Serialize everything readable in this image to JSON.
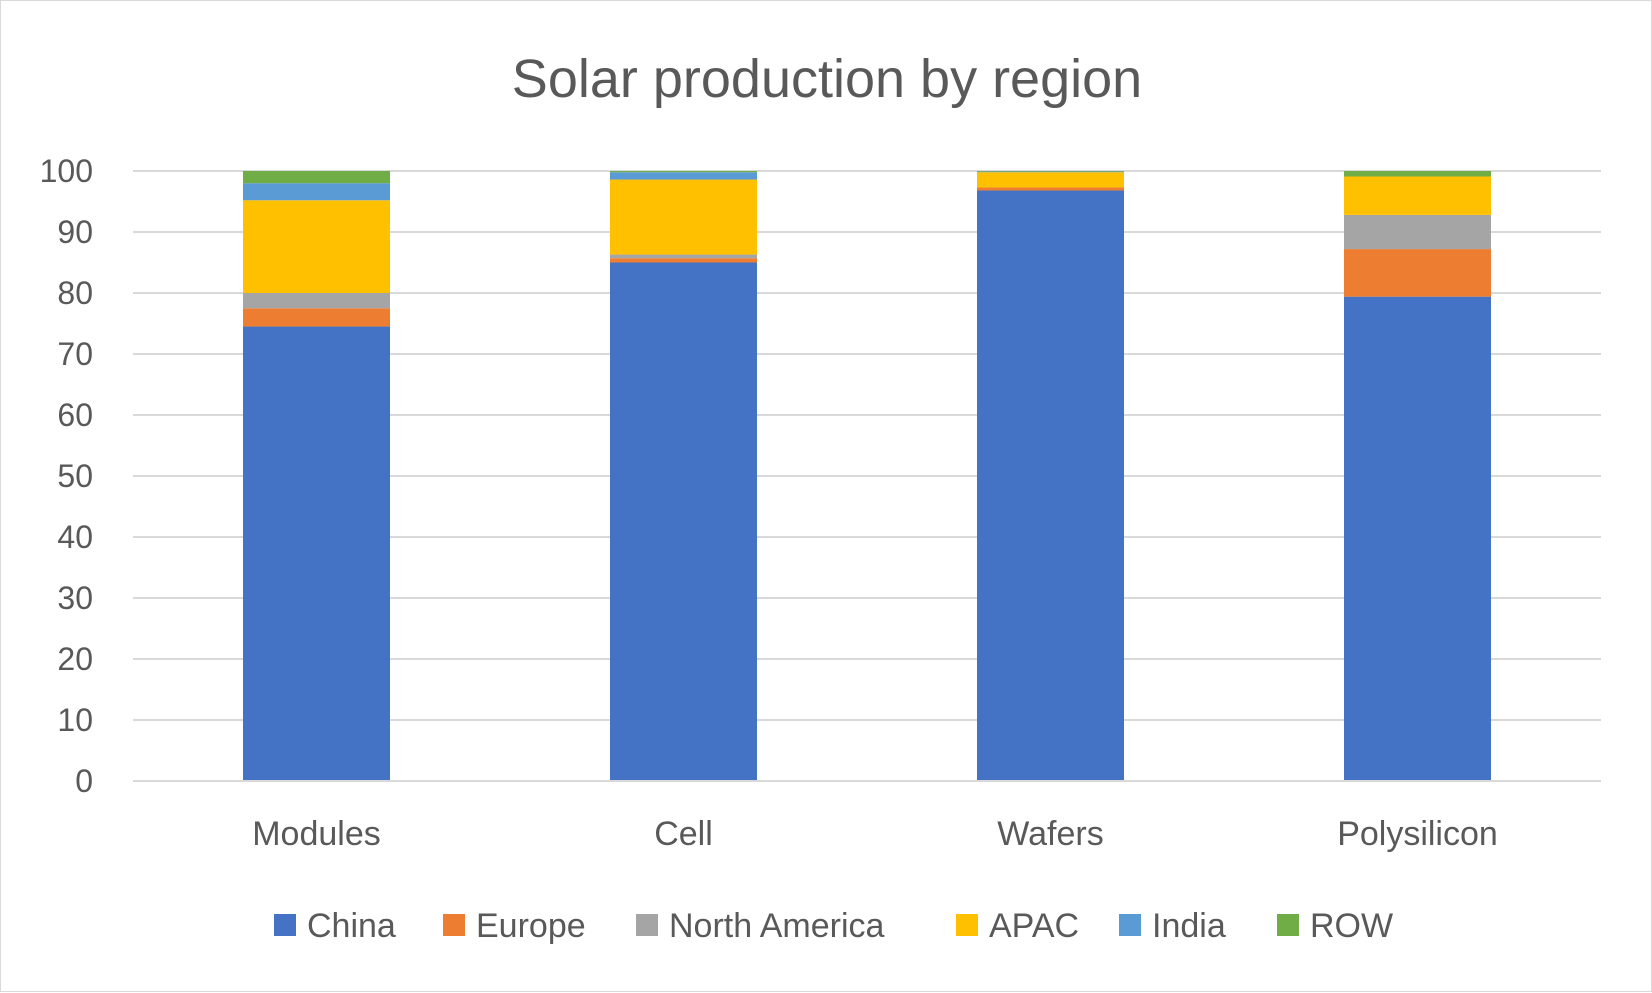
{
  "chart_data": {
    "type": "bar",
    "stacked": true,
    "title": "Solar production by region",
    "xlabel": "",
    "ylabel": "",
    "ylim": [
      0,
      100
    ],
    "yticks": [
      0,
      10,
      20,
      30,
      40,
      50,
      60,
      70,
      80,
      90,
      100
    ],
    "grid": true,
    "legend_position": "bottom",
    "categories": [
      "Modules",
      "Cell",
      "Wafers",
      "Polysilicon"
    ],
    "series": [
      {
        "name": "China",
        "color": "#4472C4",
        "values": [
          74.5,
          85,
          96.8,
          79.4
        ]
      },
      {
        "name": "Europe",
        "color": "#ED7D31",
        "values": [
          3,
          0.7,
          0.5,
          7.8
        ]
      },
      {
        "name": "North America",
        "color": "#A5A5A5",
        "values": [
          2.5,
          0.6,
          0,
          5.6
        ]
      },
      {
        "name": "APAC",
        "color": "#FFC000",
        "values": [
          15.2,
          12.3,
          2.5,
          6.3
        ]
      },
      {
        "name": "India",
        "color": "#5B9BD5",
        "values": [
          2.8,
          1.2,
          0.1,
          0
        ]
      },
      {
        "name": "ROW",
        "color": "#70AD47",
        "values": [
          2,
          0.2,
          0.1,
          0.9
        ]
      }
    ]
  }
}
